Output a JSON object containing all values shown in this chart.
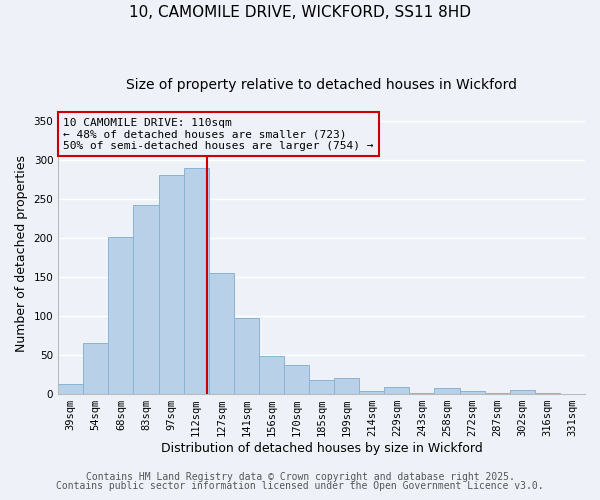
{
  "title": "10, CAMOMILE DRIVE, WICKFORD, SS11 8HD",
  "subtitle": "Size of property relative to detached houses in Wickford",
  "xlabel": "Distribution of detached houses by size in Wickford",
  "ylabel": "Number of detached properties",
  "bar_labels": [
    "39sqm",
    "54sqm",
    "68sqm",
    "83sqm",
    "97sqm",
    "112sqm",
    "127sqm",
    "141sqm",
    "156sqm",
    "170sqm",
    "185sqm",
    "199sqm",
    "214sqm",
    "229sqm",
    "243sqm",
    "258sqm",
    "272sqm",
    "287sqm",
    "302sqm",
    "316sqm",
    "331sqm"
  ],
  "bar_values": [
    13,
    65,
    201,
    242,
    281,
    290,
    155,
    98,
    49,
    37,
    18,
    20,
    4,
    9,
    2,
    8,
    4,
    2,
    5,
    2,
    0
  ],
  "bar_color": "#b8d0e8",
  "bar_edgecolor": "#88b4d4",
  "ylim": [
    0,
    360
  ],
  "yticks": [
    0,
    50,
    100,
    150,
    200,
    250,
    300,
    350
  ],
  "vline_x": 5.42,
  "vline_color": "#cc0000",
  "annotation_title": "10 CAMOMILE DRIVE: 110sqm",
  "annotation_line1": "← 48% of detached houses are smaller (723)",
  "annotation_line2": "50% of semi-detached houses are larger (754) →",
  "annotation_box_edgecolor": "#cc0000",
  "footer1": "Contains HM Land Registry data © Crown copyright and database right 2025.",
  "footer2": "Contains public sector information licensed under the Open Government Licence v3.0.",
  "bg_color": "#eef2f8",
  "grid_color": "#ffffff",
  "title_fontsize": 11,
  "subtitle_fontsize": 10,
  "axis_label_fontsize": 9,
  "tick_fontsize": 7.5,
  "annotation_fontsize": 8,
  "footer_fontsize": 7
}
